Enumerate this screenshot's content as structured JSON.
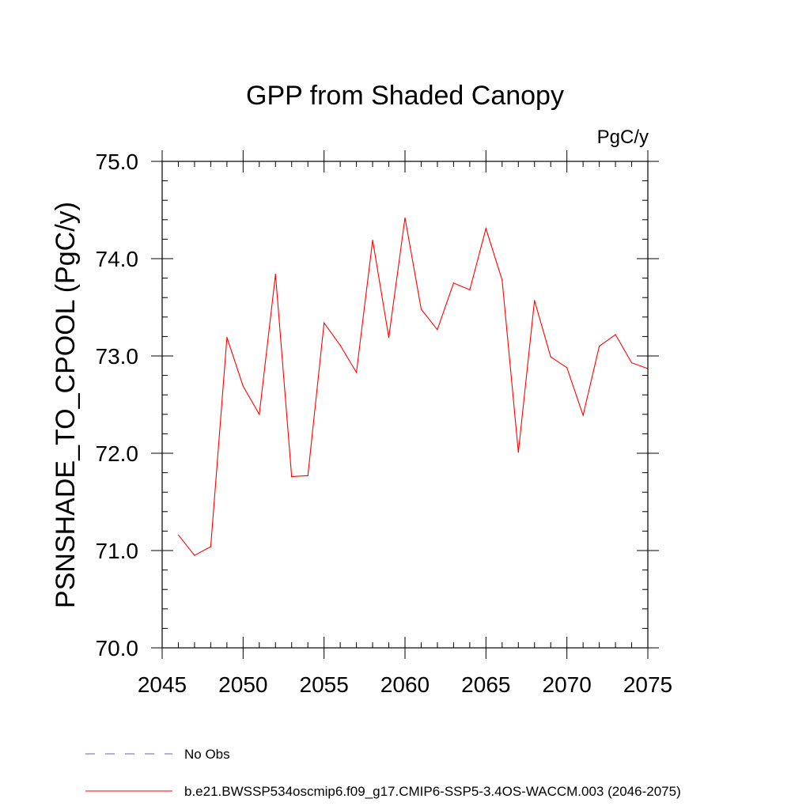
{
  "chart_data": {
    "type": "line",
    "title": "GPP from Shaded Canopy",
    "units_label": "PgC/y",
    "xlabel": "",
    "ylabel": "PSNSHADE_TO_CPOOL  (PgC/y)",
    "xlim": [
      2045,
      2075
    ],
    "ylim": [
      70.0,
      75.0
    ],
    "x_ticks": [
      2045,
      2050,
      2055,
      2060,
      2065,
      2070,
      2075
    ],
    "x_tick_labels": [
      "2045",
      "2050",
      "2055",
      "2060",
      "2065",
      "2070",
      "2075"
    ],
    "y_ticks": [
      70.0,
      71.0,
      72.0,
      73.0,
      74.0,
      75.0
    ],
    "y_tick_labels": [
      "70.0",
      "71.0",
      "72.0",
      "73.0",
      "74.0",
      "75.0"
    ],
    "x_minor_step": 1,
    "y_minor_step": 0.2,
    "series": [
      {
        "name": "b.e21.BWSSP534oscmip6.f09_g17.CMIP6-SSP5-3.4OS-WACCM.003 (2046-2075)",
        "color": "#ff0000",
        "x": [
          2046,
          2047,
          2048,
          2049,
          2050,
          2051,
          2052,
          2053,
          2054,
          2055,
          2056,
          2057,
          2058,
          2059,
          2060,
          2061,
          2062,
          2063,
          2064,
          2065,
          2066,
          2067,
          2068,
          2069,
          2070,
          2071,
          2072,
          2073,
          2074,
          2075
        ],
        "values": [
          71.16,
          70.95,
          71.04,
          73.19,
          72.69,
          72.4,
          73.84,
          71.76,
          71.77,
          73.34,
          73.11,
          72.83,
          74.19,
          73.19,
          74.42,
          73.48,
          73.27,
          73.75,
          73.68,
          74.31,
          73.78,
          72.01,
          73.57,
          72.99,
          72.88,
          72.39,
          73.1,
          73.22,
          72.93,
          72.87
        ]
      }
    ],
    "legend": [
      {
        "label": "No Obs",
        "color": "#8a7fd0",
        "style": "dashed"
      },
      {
        "label": "b.e21.BWSSP534oscmip6.f09_g17.CMIP6-SSP5-3.4OS-WACCM.003 (2046-2075)",
        "color": "#ff0000",
        "style": "solid"
      }
    ]
  }
}
